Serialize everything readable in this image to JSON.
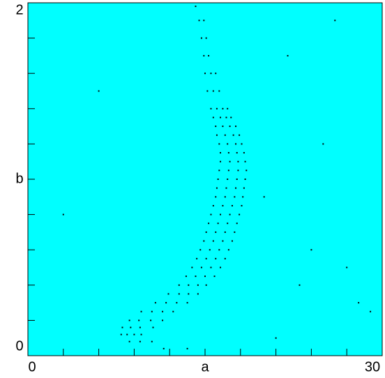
{
  "chart_data": {
    "type": "scatter",
    "x": [
      11.5,
      13.5,
      8.6,
      9.5,
      10.5,
      7.9,
      8.4,
      9.0,
      9.6,
      8.0,
      8.7,
      9.5,
      10.6,
      8.6,
      9.4,
      10.4,
      11.4,
      9.6,
      10.5,
      11.4,
      12.3,
      10.8,
      11.7,
      12.6,
      13.5,
      11.9,
      12.8,
      13.6,
      14.4,
      12.8,
      13.6,
      14.4,
      15.1,
      13.4,
      14.2,
      15.0,
      15.8,
      13.9,
      14.7,
      15.5,
      16.3,
      14.3,
      15.1,
      15.9,
      16.7,
      14.6,
      15.4,
      16.2,
      17.0,
      14.9,
      15.7,
      16.5,
      17.3,
      15.1,
      15.9,
      16.7,
      17.5,
      15.3,
      16.1,
      16.9,
      17.7,
      15.5,
      16.3,
      17.1,
      17.9,
      15.7,
      16.5,
      17.3,
      18.1,
      15.9,
      16.7,
      17.5,
      18.2,
      16.0,
      16.8,
      17.6,
      18.3,
      16.1,
      16.9,
      17.7,
      18.4,
      16.2,
      17.0,
      17.8,
      18.5,
      16.3,
      17.1,
      17.8,
      18.4,
      16.3,
      17.0,
      17.7,
      18.3,
      16.2,
      16.9,
      17.6,
      18.1,
      16.0,
      16.7,
      17.4,
      17.9,
      15.9,
      16.5,
      17.1,
      17.6,
      15.7,
      16.3,
      16.8,
      17.2,
      15.5,
      16.0,
      16.5,
      16.9,
      15.2,
      15.7,
      16.2,
      15.0,
      15.5,
      15.9,
      14.9,
      15.3,
      14.7,
      15.1,
      14.5,
      14.9,
      14.2,
      22,
      25,
      27,
      28,
      29,
      20,
      24,
      26,
      21,
      23,
      6,
      3
    ],
    "values": [
      0.04,
      0.04,
      0.08,
      0.08,
      0.08,
      0.12,
      0.12,
      0.12,
      0.12,
      0.16,
      0.16,
      0.16,
      0.16,
      0.2,
      0.2,
      0.2,
      0.2,
      0.25,
      0.25,
      0.25,
      0.25,
      0.3,
      0.3,
      0.3,
      0.3,
      0.35,
      0.35,
      0.35,
      0.35,
      0.4,
      0.4,
      0.4,
      0.4,
      0.45,
      0.45,
      0.45,
      0.45,
      0.5,
      0.5,
      0.5,
      0.5,
      0.55,
      0.55,
      0.55,
      0.55,
      0.6,
      0.6,
      0.6,
      0.6,
      0.65,
      0.65,
      0.65,
      0.65,
      0.7,
      0.7,
      0.7,
      0.7,
      0.75,
      0.75,
      0.75,
      0.75,
      0.8,
      0.8,
      0.8,
      0.8,
      0.85,
      0.85,
      0.85,
      0.85,
      0.9,
      0.9,
      0.9,
      0.9,
      0.95,
      0.95,
      0.95,
      0.95,
      1.0,
      1.0,
      1.0,
      1.0,
      1.05,
      1.05,
      1.05,
      1.05,
      1.1,
      1.1,
      1.1,
      1.1,
      1.15,
      1.15,
      1.15,
      1.15,
      1.2,
      1.2,
      1.2,
      1.2,
      1.25,
      1.25,
      1.25,
      1.25,
      1.3,
      1.3,
      1.3,
      1.3,
      1.35,
      1.35,
      1.35,
      1.35,
      1.4,
      1.4,
      1.4,
      1.4,
      1.5,
      1.5,
      1.5,
      1.6,
      1.6,
      1.6,
      1.7,
      1.7,
      1.8,
      1.8,
      1.9,
      1.9,
      1.98,
      1.7,
      1.2,
      0.5,
      0.3,
      0.25,
      0.9,
      0.6,
      1.9,
      0.1,
      0.4,
      1.5,
      0.8
    ],
    "color": "#000000",
    "background": "#00ffff",
    "xlim": [
      0,
      30
    ],
    "ylim": [
      0,
      2
    ],
    "xticks": [
      0,
      {
        "value": 15,
        "label": "a"
      },
      30
    ],
    "yticks": [
      0,
      {
        "value": 1,
        "label": "b"
      },
      2
    ],
    "xminor_ticks": [
      3,
      6,
      9,
      12,
      18,
      21,
      24,
      27
    ],
    "yminor_ticks": [
      0.2,
      0.4,
      0.6,
      0.8,
      1.2,
      1.4,
      1.6,
      1.8
    ]
  }
}
